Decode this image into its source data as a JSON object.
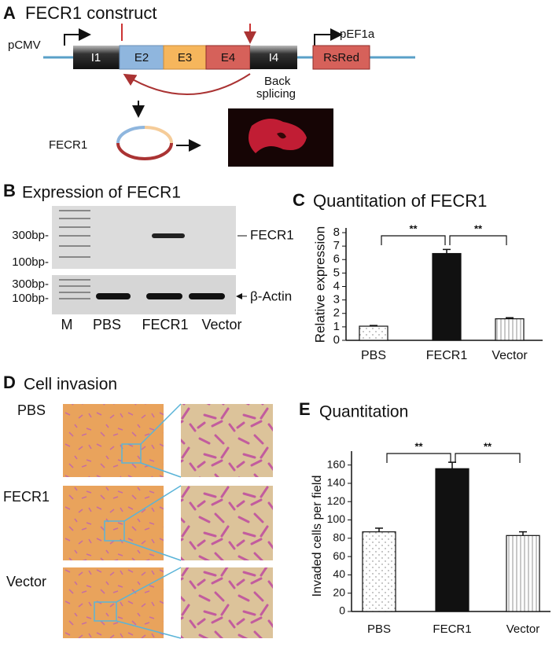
{
  "panels": {
    "a": {
      "letter": "A",
      "title": "FECR1 construct",
      "promoter1": "pCMV",
      "promoter2": "pEF1a",
      "segments": [
        "I1",
        "E2",
        "E3",
        "E4",
        "I4"
      ],
      "reporter": "RsRed",
      "back_splicing": [
        "Back",
        "splicing"
      ],
      "circ_label": "FECR1"
    },
    "b": {
      "letter": "B",
      "title": "Expression of FECR1",
      "ladder_top": [
        "300bp-",
        "100bp-"
      ],
      "ladder_bottom": [
        "300bp-",
        "100bp-"
      ],
      "band_labels": [
        "FECR1",
        "β-Actin"
      ],
      "lanes": [
        "M",
        "PBS",
        "FECR1",
        "Vector"
      ]
    },
    "d": {
      "letter": "D",
      "title": "Cell invasion",
      "rows": [
        "PBS",
        "FECR1",
        "Vector"
      ]
    }
  },
  "chart_data": [
    {
      "type": "bar",
      "panel": "C",
      "title": "Quantitation of FECR1",
      "y_label": "Relative expression",
      "categories": [
        "PBS",
        "FECR1",
        "Vector"
      ],
      "values": [
        1.05,
        6.45,
        1.6
      ],
      "errors": [
        0.05,
        0.3,
        0.08
      ],
      "patterns": [
        "dots",
        "solid",
        "vlines"
      ],
      "color": "#111111",
      "ylim": [
        0,
        8
      ],
      "yticks": [
        0,
        1,
        2,
        3,
        4,
        5,
        6,
        7,
        8
      ],
      "annotations": [
        {
          "between": [
            0,
            1
          ],
          "label": "**"
        },
        {
          "between": [
            1,
            2
          ],
          "label": "**"
        }
      ]
    },
    {
      "type": "bar",
      "panel": "E",
      "title": "Quantitation",
      "y_label": "Invaded cells per field",
      "categories": [
        "PBS",
        "FECR1",
        "Vector"
      ],
      "values": [
        87,
        156,
        83
      ],
      "errors": [
        4,
        7,
        4
      ],
      "patterns": [
        "dots",
        "solid",
        "vlines"
      ],
      "color": "#111111",
      "ylim": [
        0,
        170
      ],
      "yticks": [
        0,
        20,
        40,
        60,
        80,
        100,
        120,
        140,
        160
      ],
      "annotations": [
        {
          "between": [
            0,
            1
          ],
          "label": "**"
        },
        {
          "between": [
            1,
            2
          ],
          "label": "**"
        }
      ]
    }
  ]
}
